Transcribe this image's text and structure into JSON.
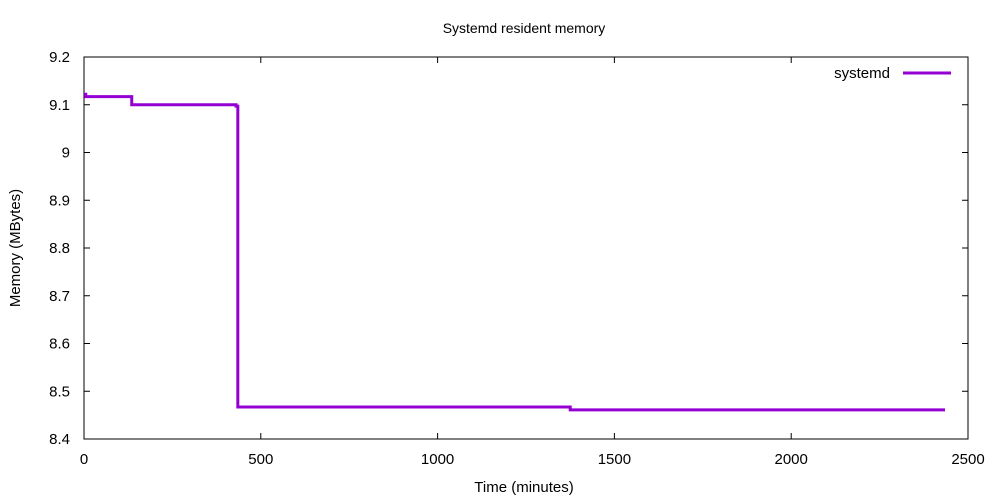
{
  "chart_data": {
    "type": "line",
    "title": "Systemd resident memory",
    "xlabel": "Time (minutes)",
    "ylabel": "Memory (MBytes)",
    "xlim": [
      0,
      2500
    ],
    "ylim": [
      8.4,
      9.2
    ],
    "x_ticks": [
      0,
      500,
      1000,
      1500,
      2000,
      2500
    ],
    "y_ticks": [
      8.4,
      8.5,
      8.6,
      8.7,
      8.8,
      8.9,
      9,
      9.1,
      9.2
    ],
    "grid": false,
    "legend_position": "top-right",
    "step": true,
    "series": [
      {
        "name": "systemd",
        "color": "#9400d3",
        "x": [
          0,
          5,
          135,
          420,
          430,
          435,
          1370,
          1375,
          2435
        ],
        "y": [
          9.122,
          9.117,
          9.1,
          9.1,
          9.097,
          8.467,
          8.467,
          8.461,
          8.461
        ]
      }
    ]
  }
}
